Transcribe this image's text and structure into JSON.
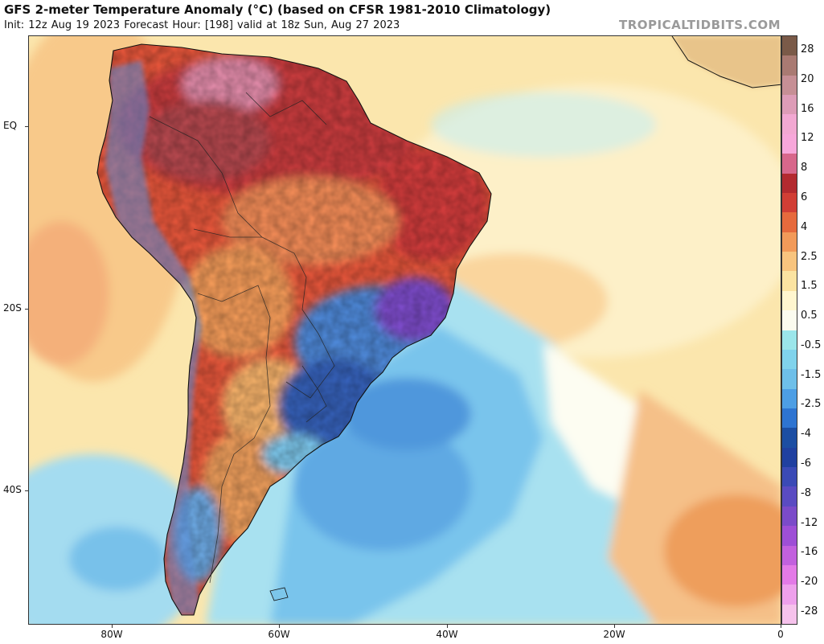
{
  "title": "GFS 2-meter Temperature Anomaly (°C) (based on CFSR 1981-2010 Climatology)",
  "subtitle": "Init: 12z Aug 19 2023   Forecast Hour: [198]   valid at 18z Sun, Aug 27 2023",
  "watermark": "TROPICALTIDBITS.COM",
  "map": {
    "lat_labels": [
      "EQ",
      "20S",
      "40S"
    ],
    "lon_labels": [
      "80W",
      "60W",
      "40W",
      "20W",
      "0"
    ]
  },
  "colorbar": {
    "labels": [
      "28",
      "20",
      "16",
      "12",
      "8",
      "6",
      "4",
      "2.5",
      "1.5",
      "0.5",
      "-0.5",
      "-1.5",
      "-2.5",
      "-4",
      "-6",
      "-8",
      "-12",
      "-16",
      "-20",
      "-28"
    ],
    "colors": [
      "#7a5a48",
      "#a97a72",
      "#c68f95",
      "#dd9cb7",
      "#f2a8d2",
      "#f7a7da",
      "#d7678b",
      "#b32a2f",
      "#d13e35",
      "#e66a3d",
      "#f29a59",
      "#f8c47e",
      "#fbe3a1",
      "#fff6cf",
      "#fbfbef",
      "#9be6ea",
      "#80d3ec",
      "#6ebfe9",
      "#4d9ee4",
      "#2e74d1",
      "#1c4ea3",
      "#2040a0",
      "#3b4ab6",
      "#5a4bc2",
      "#7b4bc9",
      "#9e4fd6",
      "#c261de",
      "#e37ae7",
      "#eea0ec",
      "#f6c2ec"
    ]
  }
}
